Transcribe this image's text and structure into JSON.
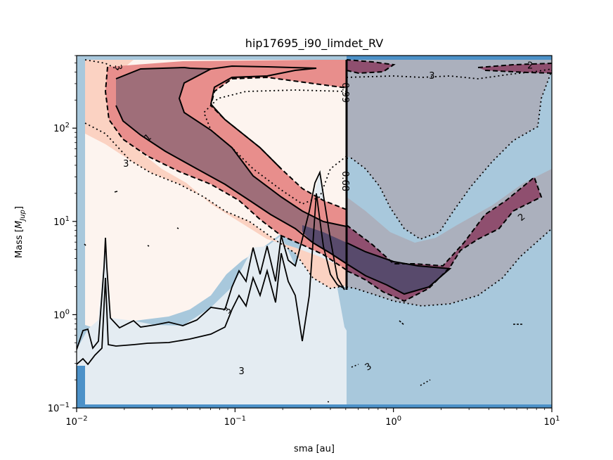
{
  "chart_data": {
    "type": "contour",
    "title": "hip17695_i90_limdet_RV",
    "xlabel": "sma [au]",
    "ylabel_main": "Mass [",
    "ylabel_sub": "Jup",
    "ylabel_close": "]",
    "xscale": "log",
    "yscale": "log",
    "xlim": [
      0.01,
      10
    ],
    "ylim": [
      0.1,
      600
    ],
    "x_ticks": [
      {
        "value": 0.01,
        "base": "10",
        "exp": "−2"
      },
      {
        "value": 0.1,
        "base": "10",
        "exp": "−1"
      },
      {
        "value": 1,
        "base": "10",
        "exp": "0"
      },
      {
        "value": 10,
        "base": "10",
        "exp": "1"
      }
    ],
    "y_ticks": [
      {
        "value": 0.1,
        "base": "10",
        "exp": "−1"
      },
      {
        "value": 1,
        "base": "10",
        "exp": "0"
      },
      {
        "value": 10,
        "base": "10",
        "exp": "1"
      },
      {
        "value": 100,
        "base": "10",
        "exp": "2"
      }
    ],
    "detection_limit_sma": 0.5,
    "contour_levels": [
      {
        "name": "level-1",
        "label": "1",
        "style": "solid"
      },
      {
        "name": "level-2",
        "label": "2",
        "style": "dashed"
      },
      {
        "name": "level-3",
        "label": "3",
        "style": "dotted"
      }
    ],
    "contour_labels": [
      {
        "text": "3",
        "x": 0.0185,
        "y": 450,
        "rotate": 80
      },
      {
        "text": "1",
        "x": 0.028,
        "y": 80,
        "rotate": -40
      },
      {
        "text": "3",
        "x": 0.0205,
        "y": 42,
        "rotate": 0
      },
      {
        "text": "2",
        "x": 7.3,
        "y": 475,
        "rotate": 0
      },
      {
        "text": "3",
        "x": 1.75,
        "y": 368,
        "rotate": 0
      },
      {
        "text": "2",
        "x": 6.4,
        "y": 11.2,
        "rotate": -40
      },
      {
        "text": "3",
        "x": 0.089,
        "y": 1.12,
        "rotate": -60
      },
      {
        "text": "3",
        "x": 0.11,
        "y": 0.25,
        "rotate": 0
      },
      {
        "text": "3",
        "x": 0.69,
        "y": 0.28,
        "rotate": -30
      }
    ],
    "vertical_line_labels": [
      {
        "text": "0.99",
        "x": 0.5,
        "y": 240,
        "rotate": 90
      },
      {
        "text": "0.68",
        "x": 0.5,
        "y": 27,
        "rotate": 90
      }
    ],
    "colors": {
      "rv_region": "#a8c8dc",
      "rv_region_edge": "#4c91c8",
      "light_fill": "#e4ecf2",
      "peach": "#fbd2c2",
      "peach_pale": "#fdf4ef",
      "pink": "#e88e8c",
      "mauve": "#9f6e79",
      "purple": "#584a6c",
      "gray": "#abb0bd",
      "wine": "#8f4f6f"
    }
  }
}
